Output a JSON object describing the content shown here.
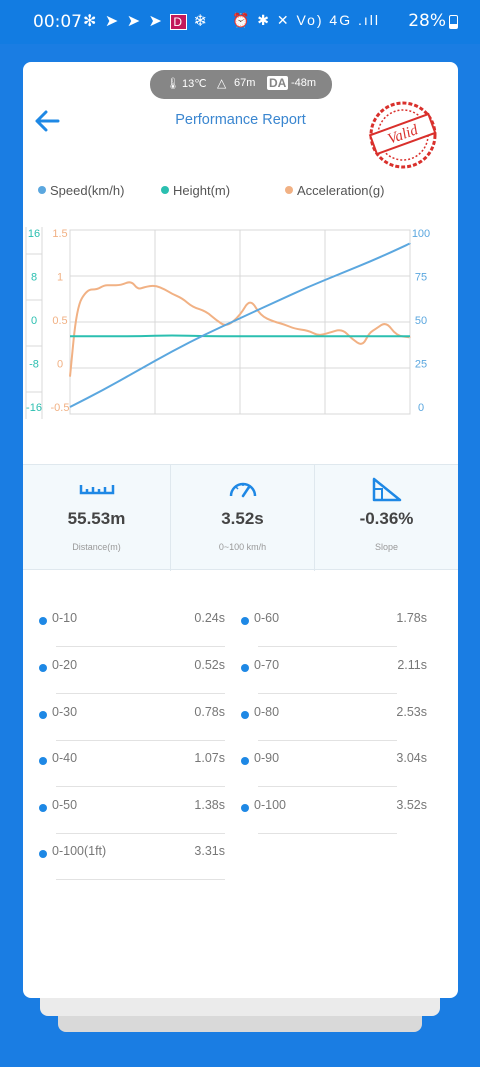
{
  "status_bar": {
    "time": "00:07",
    "left_icons": "✻ ➤ ➤ ➤",
    "red_icon": "D",
    "right_icons": "⏰ ✱ ✕ Vo) 4G .ıll",
    "battery": "28%"
  },
  "env": {
    "temperature": "13℃",
    "altitude": "67m",
    "da_badge": "DA",
    "density_altitude": "-48m"
  },
  "header": {
    "title": "Performance Report",
    "stamp_text": "Valid"
  },
  "legend": {
    "speed": "Speed(km/h)",
    "height": "Height(m)",
    "accel": "Acceleration(g)"
  },
  "colors": {
    "speed": "#5ba7df",
    "height": "#2bbfb0",
    "accel": "#f1b184",
    "accent": "#1a7de3",
    "stamp": "#d9302c"
  },
  "chart_data": {
    "type": "line",
    "xlabel": "",
    "y_height_ticks": [
      "16",
      "8",
      "0",
      "-8",
      "-16"
    ],
    "y_accel_ticks": [
      "1.5",
      "1",
      "0.5",
      "0",
      "-0.5"
    ],
    "y_speed_ticks": [
      "100",
      "75",
      "50",
      "25",
      "0"
    ],
    "ylim_speed": [
      0,
      100
    ],
    "ylim_accel": [
      -0.5,
      1.5
    ],
    "ylim_height": [
      -16,
      16
    ],
    "grid": true,
    "series": [
      {
        "name": "Speed(km/h)",
        "axis": "speed",
        "x": [
          0,
          0.1,
          0.2,
          0.3,
          0.4,
          0.5,
          0.6,
          0.7,
          0.8,
          0.9,
          1.0
        ],
        "values": [
          0,
          10,
          21,
          32,
          42,
          51,
          60,
          69,
          77,
          85,
          94
        ]
      },
      {
        "name": "Height(m)",
        "axis": "height",
        "x": [
          0,
          0.1,
          0.2,
          0.3,
          0.4,
          0.5,
          0.6,
          0.7,
          0.8,
          0.9,
          1.0
        ],
        "values": [
          -3,
          -3,
          -3,
          -2.8,
          -3,
          -3,
          -3,
          -3,
          -3,
          -3,
          -3
        ]
      },
      {
        "name": "Acceleration(g)",
        "axis": "accel",
        "x": [
          0,
          0.02,
          0.05,
          0.08,
          0.1,
          0.12,
          0.15,
          0.18,
          0.2,
          0.22,
          0.25,
          0.28,
          0.3,
          0.33,
          0.36,
          0.4,
          0.43,
          0.46,
          0.5,
          0.53,
          0.56,
          0.6,
          0.63,
          0.66,
          0.7,
          0.73,
          0.76,
          0.8,
          0.83,
          0.86,
          0.88,
          0.9,
          0.93,
          0.96,
          1.0
        ],
        "values": [
          -0.15,
          0.65,
          0.85,
          0.85,
          0.9,
          0.9,
          0.9,
          0.95,
          0.85,
          0.88,
          0.9,
          0.85,
          0.8,
          0.75,
          0.65,
          0.6,
          0.5,
          0.42,
          0.55,
          0.75,
          0.55,
          0.48,
          0.45,
          0.4,
          0.38,
          0.32,
          0.35,
          0.4,
          0.28,
          0.2,
          0.35,
          0.4,
          0.48,
          0.32,
          0.3
        ]
      }
    ]
  },
  "stats": [
    {
      "value": "55.53m",
      "label": "Distance(m)"
    },
    {
      "value": "3.52s",
      "label": "0~100 km/h"
    },
    {
      "value": "-0.36%",
      "label": "Slope"
    }
  ],
  "times_left": [
    {
      "label": "0-10",
      "value": "0.24s"
    },
    {
      "label": "0-20",
      "value": "0.52s"
    },
    {
      "label": "0-30",
      "value": "0.78s"
    },
    {
      "label": "0-40",
      "value": "1.07s"
    },
    {
      "label": "0-50",
      "value": "1.38s"
    },
    {
      "label": "0-100(1ft)",
      "value": "3.31s"
    }
  ],
  "times_right": [
    {
      "label": "0-60",
      "value": "1.78s"
    },
    {
      "label": "0-70",
      "value": "2.11s"
    },
    {
      "label": "0-80",
      "value": "2.53s"
    },
    {
      "label": "0-90",
      "value": "3.04s"
    },
    {
      "label": "0-100",
      "value": "3.52s"
    }
  ]
}
